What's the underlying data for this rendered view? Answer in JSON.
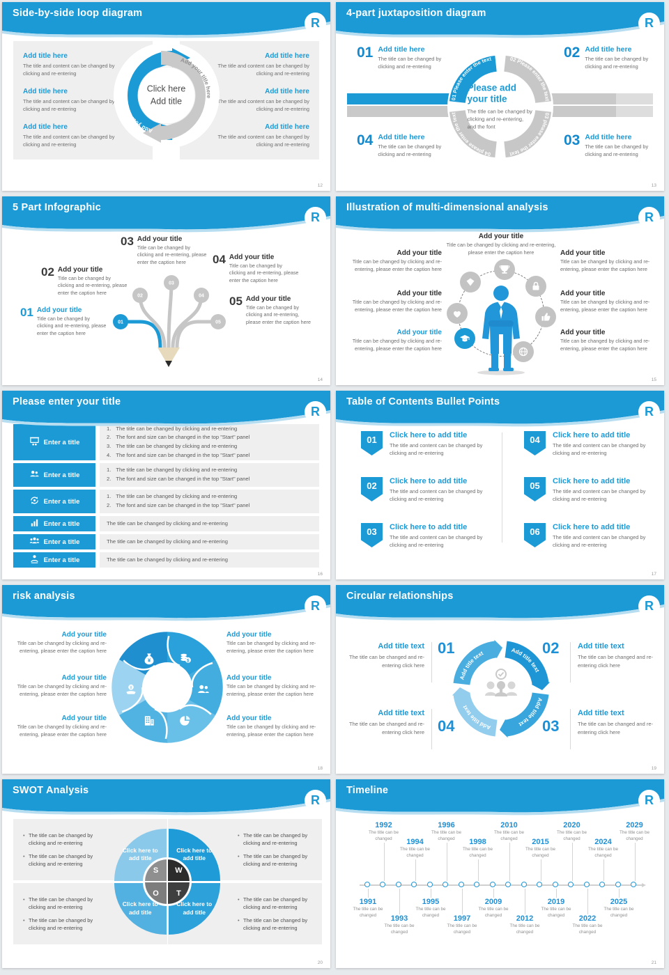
{
  "logo": "R",
  "accent": "#1b9ad6",
  "slides": {
    "loop": {
      "title": "Side-by-side loop diagram",
      "page": "12",
      "item_title": "Add title here",
      "item_caption": "The title and content can be changed by clicking and re-entering",
      "arc_left_label": "Add your title here",
      "arc_right_label": "Add your title here",
      "center_line1": "Click here",
      "center_line2": "Add title"
    },
    "juxta": {
      "title": "4-part juxtaposition diagram",
      "page": "13",
      "items": [
        {
          "num": "01"
        },
        {
          "num": "02"
        },
        {
          "num": "03"
        },
        {
          "num": "04"
        }
      ],
      "item_title": "Add title here",
      "item_caption": "The title can be changed by clicking and re-entering",
      "arcs": [
        "01 Please enter the text",
        "02 Please enter the text",
        "03 please enter the text",
        "04 please enter the text"
      ],
      "center_title": "Please add your title",
      "center_caption": "The title can be changed by clicking and re-entering, and the font"
    },
    "five": {
      "title": "5 Part Infographic",
      "page": "14",
      "nums": [
        "01",
        "02",
        "03",
        "04",
        "05"
      ],
      "item_title": "Add your title",
      "item_caption": "Title can be changed by clicking and re-entering, please enter the caption here"
    },
    "multi": {
      "title": "Illustration of multi-dimensional analysis",
      "page": "15",
      "item_title": "Add your title",
      "item_caption": "Title can be changed by clicking and re-entering, please enter the caption here",
      "icons": [
        "trophy",
        "lock",
        "thumbs-up",
        "globe",
        "graduation-cap",
        "heart",
        "diamond"
      ]
    },
    "enter": {
      "title": "Please enter your title",
      "page": "16",
      "button_label": "Enter a title",
      "button_icons": [
        "presentation",
        "two-users",
        "sync-person",
        "bar-chart",
        "team",
        "care-person"
      ],
      "rows": [
        {
          "lines": [
            {
              "n": "1.",
              "t": "The title can be changed by clicking and re-entering"
            },
            {
              "n": "2.",
              "t": "The font and size can be changed in the top \"Start\" panel"
            },
            {
              "n": "3.",
              "t": "The title can be changed by clicking and re-entering"
            },
            {
              "n": "4.",
              "t": "The font and size can be changed in the top \"Start\" panel"
            }
          ]
        },
        {
          "lines": [
            {
              "n": "1.",
              "t": "The title can be changed by clicking and re-entering"
            },
            {
              "n": "2.",
              "t": "The font and size can be changed in the top \"Start\" panel"
            }
          ]
        },
        {
          "lines": [
            {
              "n": "1.",
              "t": "The title can be changed by clicking and re-entering"
            },
            {
              "n": "2.",
              "t": "The font and size can be changed in the top \"Start\" panel"
            }
          ]
        },
        {
          "text": "The title can be changed by clicking and re-entering"
        },
        {
          "text": "The title can be changed by clicking and re-entering"
        },
        {
          "text": "The title can be changed by clicking and re-entering"
        }
      ]
    },
    "toc": {
      "title": "Table of Contents Bullet Points",
      "page": "17",
      "nums": [
        "01",
        "02",
        "03",
        "04",
        "05",
        "06"
      ],
      "item_title": "Click here to add title",
      "item_caption": "The title and content can be changed by clicking and re-entering"
    },
    "risk": {
      "title": "risk analysis",
      "page": "18",
      "item_title": "Add your title",
      "item_caption": "Title can be changed by clicking and re-entering, please enter the caption here",
      "icons": [
        "money-bag",
        "coins",
        "people",
        "pie-chart",
        "building",
        "hand-coin"
      ]
    },
    "circ": {
      "title": "Circular relationships",
      "page": "19",
      "nums": [
        "01",
        "02",
        "03",
        "04"
      ],
      "arc_label": "Add title text",
      "item_title": "Add title text",
      "item_caption": "The title can be changed and re-entering click here"
    },
    "swot": {
      "title": "SWOT Analysis",
      "page": "20",
      "letters": [
        "S",
        "W",
        "O",
        "T"
      ],
      "quad_label": "Click here to add title",
      "bullet": "The title can be changed by clicking and re-entering"
    },
    "tl": {
      "title": "Timeline",
      "page": "21",
      "caption": "The title can be changed",
      "items": [
        {
          "year": "1991",
          "side": "down",
          "lvl": 1
        },
        {
          "year": "1992",
          "side": "up",
          "lvl": 2
        },
        {
          "year": "1993",
          "side": "down",
          "lvl": 2
        },
        {
          "year": "1994",
          "side": "up",
          "lvl": 1
        },
        {
          "year": "1995",
          "side": "down",
          "lvl": 1
        },
        {
          "year": "1996",
          "side": "up",
          "lvl": 2
        },
        {
          "year": "1997",
          "side": "down",
          "lvl": 2
        },
        {
          "year": "1998",
          "side": "up",
          "lvl": 1
        },
        {
          "year": "2009",
          "side": "down",
          "lvl": 1
        },
        {
          "year": "2010",
          "side": "up",
          "lvl": 2
        },
        {
          "year": "2012",
          "side": "down",
          "lvl": 2
        },
        {
          "year": "2015",
          "side": "up",
          "lvl": 1
        },
        {
          "year": "2019",
          "side": "down",
          "lvl": 1
        },
        {
          "year": "2020",
          "side": "up",
          "lvl": 2
        },
        {
          "year": "2022",
          "side": "down",
          "lvl": 2
        },
        {
          "year": "2024",
          "side": "up",
          "lvl": 1
        },
        {
          "year": "2025",
          "side": "down",
          "lvl": 1
        },
        {
          "year": "2029",
          "side": "up",
          "lvl": 2
        }
      ]
    }
  }
}
